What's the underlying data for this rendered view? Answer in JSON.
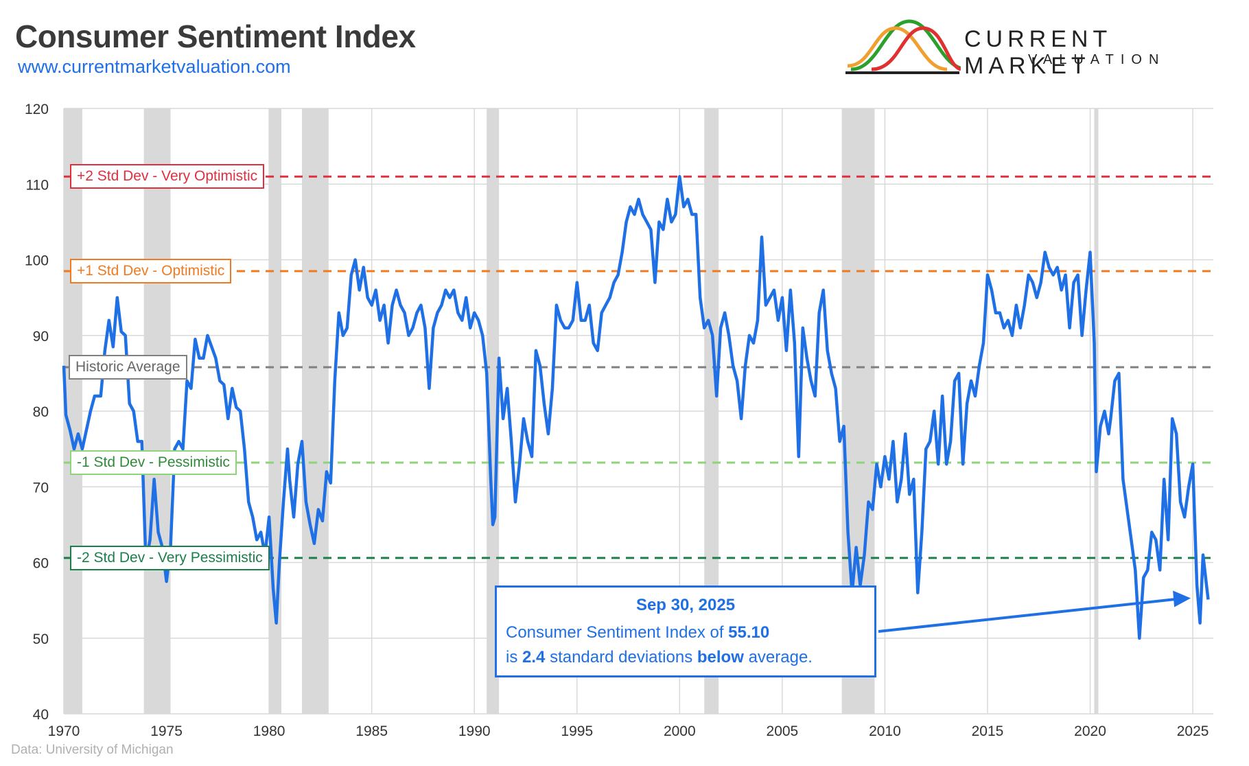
{
  "header": {
    "title": "Consumer Sentiment Index",
    "url": "www.currentmarketvaluation.com",
    "source": "Data: University of Michigan"
  },
  "logo": {
    "line1": "CURRENT MARKET",
    "line2": "VALUATION",
    "curve_colors": [
      "#f0a030",
      "#2ca02c",
      "#e03030"
    ]
  },
  "colors": {
    "series": "#1f6fe5",
    "recession": "#d9d9d9",
    "grid": "#d9d9d9",
    "plus2": "#e03040",
    "plus1": "#f07a20",
    "average": "#808080",
    "minus1": "#8fd37a",
    "minus2": "#1b7f4a"
  },
  "reference_lines": [
    {
      "key": "plus2",
      "label": "+2 Std Dev - Very Optimistic",
      "value": 111.0,
      "color": "#e03040"
    },
    {
      "key": "plus1",
      "label": "+1 Std Dev - Optimistic",
      "value": 98.5,
      "color": "#f07a20"
    },
    {
      "key": "average",
      "label": "Historic Average",
      "value": 85.8,
      "color": "#808080"
    },
    {
      "key": "minus1",
      "label": "-1 Std Dev - Pessimistic",
      "value": 73.2,
      "color": "#8fd37a"
    },
    {
      "key": "minus2",
      "label": "-2 Std Dev - Very Pessimistic",
      "value": 60.6,
      "color": "#1b7f4a"
    }
  ],
  "callout": {
    "date": "Sep 30, 2025",
    "line1_prefix": "Consumer Sentiment Index of",
    "value": "55.10",
    "line2_prefix": "is",
    "deviations": "2.4",
    "line2_mid": "standard deviations",
    "direction": "below",
    "line2_suffix": "average."
  },
  "chart_data": {
    "type": "line",
    "title": "Consumer Sentiment Index",
    "xlabel": "",
    "ylabel": "",
    "xlim": [
      1970,
      2026
    ],
    "ylim": [
      40,
      120
    ],
    "grid": true,
    "x_ticks": [
      "1970",
      "1975",
      "1980",
      "1985",
      "1990",
      "1995",
      "2000",
      "2005",
      "2010",
      "2015",
      "2020",
      "2025"
    ],
    "y_ticks": [
      "40",
      "50",
      "60",
      "70",
      "80",
      "90",
      "100",
      "110",
      "120"
    ],
    "recessions": [
      [
        1970.0,
        1970.9
      ],
      [
        1973.9,
        1975.2
      ],
      [
        1980.0,
        1980.6
      ],
      [
        1981.6,
        1982.9
      ],
      [
        1990.6,
        1991.2
      ],
      [
        2001.2,
        2001.9
      ],
      [
        2007.9,
        2009.5
      ],
      [
        2020.2,
        2020.4
      ]
    ],
    "series": [
      {
        "values": [
          [
            1970.0,
            86
          ],
          [
            1970.1,
            79.5
          ],
          [
            1970.3,
            77.5
          ],
          [
            1970.5,
            75
          ],
          [
            1970.7,
            77
          ],
          [
            1970.9,
            75
          ],
          [
            1971.1,
            77.5
          ],
          [
            1971.3,
            80
          ],
          [
            1971.5,
            82
          ],
          [
            1971.8,
            82
          ],
          [
            1972.0,
            88
          ],
          [
            1972.2,
            92
          ],
          [
            1972.4,
            88.5
          ],
          [
            1972.6,
            95
          ],
          [
            1972.8,
            90.5
          ],
          [
            1973.0,
            90
          ],
          [
            1973.2,
            81
          ],
          [
            1973.4,
            80
          ],
          [
            1973.6,
            76
          ],
          [
            1973.8,
            76
          ],
          [
            1974.0,
            60
          ],
          [
            1974.2,
            63
          ],
          [
            1974.4,
            71
          ],
          [
            1974.6,
            64
          ],
          [
            1974.8,
            62
          ],
          [
            1975.0,
            57.5
          ],
          [
            1975.2,
            62
          ],
          [
            1975.4,
            75
          ],
          [
            1975.6,
            76
          ],
          [
            1975.8,
            75
          ],
          [
            1976.0,
            84
          ],
          [
            1976.2,
            83
          ],
          [
            1976.4,
            89.5
          ],
          [
            1976.6,
            87
          ],
          [
            1976.8,
            87
          ],
          [
            1977.0,
            90
          ],
          [
            1977.2,
            88.5
          ],
          [
            1977.4,
            87
          ],
          [
            1977.6,
            84
          ],
          [
            1977.8,
            83.5
          ],
          [
            1978.0,
            79
          ],
          [
            1978.2,
            83
          ],
          [
            1978.4,
            80.5
          ],
          [
            1978.6,
            80
          ],
          [
            1978.8,
            75
          ],
          [
            1979.0,
            68
          ],
          [
            1979.2,
            66
          ],
          [
            1979.4,
            63
          ],
          [
            1979.6,
            64
          ],
          [
            1979.8,
            61
          ],
          [
            1980.0,
            66
          ],
          [
            1980.2,
            56.5
          ],
          [
            1980.35,
            52
          ],
          [
            1980.5,
            60
          ],
          [
            1980.7,
            68
          ],
          [
            1980.9,
            75
          ],
          [
            1981.0,
            71
          ],
          [
            1981.2,
            66
          ],
          [
            1981.4,
            73
          ],
          [
            1981.6,
            76
          ],
          [
            1981.8,
            68
          ],
          [
            1982.0,
            65
          ],
          [
            1982.2,
            62.5
          ],
          [
            1982.4,
            67
          ],
          [
            1982.6,
            65.5
          ],
          [
            1982.8,
            72
          ],
          [
            1983.0,
            70.5
          ],
          [
            1983.2,
            84
          ],
          [
            1983.4,
            93
          ],
          [
            1983.6,
            90
          ],
          [
            1983.8,
            91
          ],
          [
            1984.0,
            98
          ],
          [
            1984.2,
            100
          ],
          [
            1984.4,
            96
          ],
          [
            1984.6,
            99
          ],
          [
            1984.8,
            95
          ],
          [
            1985.0,
            94
          ],
          [
            1985.2,
            96
          ],
          [
            1985.4,
            92
          ],
          [
            1985.6,
            94
          ],
          [
            1985.8,
            89
          ],
          [
            1986.0,
            94
          ],
          [
            1986.2,
            96
          ],
          [
            1986.4,
            94
          ],
          [
            1986.6,
            93
          ],
          [
            1986.8,
            90
          ],
          [
            1987.0,
            91
          ],
          [
            1987.2,
            93
          ],
          [
            1987.4,
            94
          ],
          [
            1987.6,
            91
          ],
          [
            1987.8,
            83
          ],
          [
            1988.0,
            91
          ],
          [
            1988.2,
            93
          ],
          [
            1988.4,
            94
          ],
          [
            1988.6,
            96
          ],
          [
            1988.8,
            95
          ],
          [
            1989.0,
            96
          ],
          [
            1989.2,
            93
          ],
          [
            1989.4,
            92
          ],
          [
            1989.6,
            95
          ],
          [
            1989.8,
            91
          ],
          [
            1990.0,
            93
          ],
          [
            1990.2,
            92
          ],
          [
            1990.4,
            90
          ],
          [
            1990.6,
            85
          ],
          [
            1990.8,
            71
          ],
          [
            1990.9,
            65
          ],
          [
            1991.0,
            66
          ],
          [
            1991.2,
            87
          ],
          [
            1991.4,
            79
          ],
          [
            1991.6,
            83
          ],
          [
            1991.8,
            76
          ],
          [
            1992.0,
            68
          ],
          [
            1992.2,
            73
          ],
          [
            1992.4,
            79
          ],
          [
            1992.6,
            76
          ],
          [
            1992.8,
            74
          ],
          [
            1993.0,
            88
          ],
          [
            1993.2,
            86
          ],
          [
            1993.4,
            81
          ],
          [
            1993.6,
            77
          ],
          [
            1993.8,
            83
          ],
          [
            1994.0,
            94
          ],
          [
            1994.2,
            92
          ],
          [
            1994.4,
            91
          ],
          [
            1994.6,
            91
          ],
          [
            1994.8,
            92
          ],
          [
            1995.0,
            97
          ],
          [
            1995.2,
            92
          ],
          [
            1995.4,
            92
          ],
          [
            1995.6,
            94
          ],
          [
            1995.8,
            89
          ],
          [
            1996.0,
            88
          ],
          [
            1996.2,
            93
          ],
          [
            1996.4,
            94
          ],
          [
            1996.6,
            95
          ],
          [
            1996.8,
            97
          ],
          [
            1997.0,
            98
          ],
          [
            1997.2,
            101
          ],
          [
            1997.4,
            105
          ],
          [
            1997.6,
            107
          ],
          [
            1997.8,
            106
          ],
          [
            1998.0,
            108
          ],
          [
            1998.2,
            106
          ],
          [
            1998.4,
            105
          ],
          [
            1998.6,
            104
          ],
          [
            1998.8,
            97
          ],
          [
            1999.0,
            105
          ],
          [
            1999.2,
            104
          ],
          [
            1999.4,
            108
          ],
          [
            1999.6,
            105
          ],
          [
            1999.8,
            106
          ],
          [
            2000.0,
            111
          ],
          [
            2000.2,
            107
          ],
          [
            2000.4,
            108
          ],
          [
            2000.6,
            106
          ],
          [
            2000.8,
            106
          ],
          [
            2001.0,
            95
          ],
          [
            2001.2,
            91
          ],
          [
            2001.4,
            92
          ],
          [
            2001.6,
            90
          ],
          [
            2001.8,
            82
          ],
          [
            2002.0,
            91
          ],
          [
            2002.2,
            93
          ],
          [
            2002.4,
            90
          ],
          [
            2002.6,
            86
          ],
          [
            2002.8,
            84
          ],
          [
            2003.0,
            79
          ],
          [
            2003.2,
            86
          ],
          [
            2003.4,
            90
          ],
          [
            2003.6,
            89
          ],
          [
            2003.8,
            92
          ],
          [
            2004.0,
            103
          ],
          [
            2004.2,
            94
          ],
          [
            2004.4,
            95
          ],
          [
            2004.6,
            96
          ],
          [
            2004.8,
            92
          ],
          [
            2005.0,
            95
          ],
          [
            2005.2,
            88
          ],
          [
            2005.4,
            96
          ],
          [
            2005.6,
            89
          ],
          [
            2005.8,
            74
          ],
          [
            2006.0,
            91
          ],
          [
            2006.2,
            87
          ],
          [
            2006.4,
            84
          ],
          [
            2006.6,
            82
          ],
          [
            2006.8,
            93
          ],
          [
            2007.0,
            96
          ],
          [
            2007.2,
            88
          ],
          [
            2007.4,
            85
          ],
          [
            2007.6,
            83
          ],
          [
            2007.8,
            76
          ],
          [
            2008.0,
            78
          ],
          [
            2008.2,
            64
          ],
          [
            2008.4,
            56
          ],
          [
            2008.6,
            62
          ],
          [
            2008.8,
            57
          ],
          [
            2009.0,
            61
          ],
          [
            2009.2,
            68
          ],
          [
            2009.4,
            67
          ],
          [
            2009.6,
            73
          ],
          [
            2009.8,
            70
          ],
          [
            2010.0,
            74
          ],
          [
            2010.2,
            71
          ],
          [
            2010.4,
            76
          ],
          [
            2010.6,
            68
          ],
          [
            2010.8,
            71
          ],
          [
            2011.0,
            77
          ],
          [
            2011.2,
            69
          ],
          [
            2011.4,
            71
          ],
          [
            2011.6,
            56
          ],
          [
            2011.8,
            64
          ],
          [
            2012.0,
            75
          ],
          [
            2012.2,
            76
          ],
          [
            2012.4,
            80
          ],
          [
            2012.6,
            73
          ],
          [
            2012.8,
            82
          ],
          [
            2013.0,
            73
          ],
          [
            2013.2,
            76
          ],
          [
            2013.4,
            84
          ],
          [
            2013.6,
            85
          ],
          [
            2013.8,
            73
          ],
          [
            2014.0,
            81
          ],
          [
            2014.2,
            84
          ],
          [
            2014.4,
            82
          ],
          [
            2014.6,
            86
          ],
          [
            2014.8,
            89
          ],
          [
            2015.0,
            98
          ],
          [
            2015.2,
            96
          ],
          [
            2015.4,
            93
          ],
          [
            2015.6,
            93
          ],
          [
            2015.8,
            91
          ],
          [
            2016.0,
            92
          ],
          [
            2016.2,
            90
          ],
          [
            2016.4,
            94
          ],
          [
            2016.6,
            91
          ],
          [
            2016.8,
            94
          ],
          [
            2017.0,
            98
          ],
          [
            2017.2,
            97
          ],
          [
            2017.4,
            95
          ],
          [
            2017.6,
            97
          ],
          [
            2017.8,
            101
          ],
          [
            2018.0,
            99
          ],
          [
            2018.2,
            98
          ],
          [
            2018.4,
            99
          ],
          [
            2018.6,
            96
          ],
          [
            2018.8,
            98
          ],
          [
            2019.0,
            91
          ],
          [
            2019.2,
            97
          ],
          [
            2019.4,
            98
          ],
          [
            2019.6,
            90
          ],
          [
            2019.8,
            96
          ],
          [
            2020.0,
            101
          ],
          [
            2020.2,
            89
          ],
          [
            2020.3,
            72
          ],
          [
            2020.5,
            78
          ],
          [
            2020.7,
            80
          ],
          [
            2020.9,
            77
          ],
          [
            2021.0,
            79
          ],
          [
            2021.2,
            84
          ],
          [
            2021.4,
            85
          ],
          [
            2021.6,
            71
          ],
          [
            2021.8,
            67
          ],
          [
            2022.0,
            63
          ],
          [
            2022.2,
            59
          ],
          [
            2022.4,
            50
          ],
          [
            2022.6,
            58
          ],
          [
            2022.8,
            59
          ],
          [
            2023.0,
            64
          ],
          [
            2023.2,
            63
          ],
          [
            2023.4,
            59
          ],
          [
            2023.6,
            71
          ],
          [
            2023.8,
            63
          ],
          [
            2024.0,
            79
          ],
          [
            2024.2,
            77
          ],
          [
            2024.4,
            68
          ],
          [
            2024.6,
            66
          ],
          [
            2024.8,
            70
          ],
          [
            2025.0,
            73
          ],
          [
            2025.2,
            57
          ],
          [
            2025.35,
            52
          ],
          [
            2025.5,
            61
          ],
          [
            2025.75,
            55.1
          ]
        ]
      }
    ]
  }
}
